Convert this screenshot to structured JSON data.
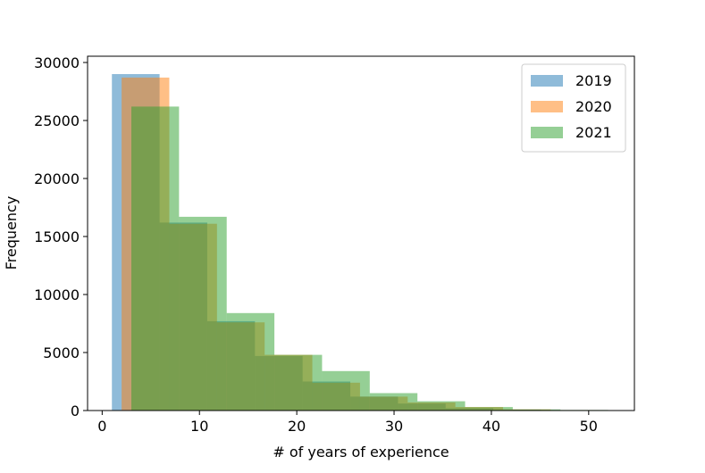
{
  "chart_data": {
    "type": "histogram",
    "x_label": "# of years of experience",
    "y_label": "Frequency",
    "series": [
      {
        "name": "2019",
        "color": "#1f77b4",
        "bins": [
          1,
          5.9,
          10.8,
          15.7,
          20.6,
          25.5,
          30.4,
          35.3,
          40.2,
          45.1,
          50
        ],
        "values": [
          29000,
          16200,
          7700,
          4700,
          2500,
          1200,
          600,
          200,
          80,
          30
        ]
      },
      {
        "name": "2020",
        "color": "#ff7f0e",
        "bins": [
          2,
          6.9,
          11.8,
          16.7,
          21.6,
          26.5,
          31.4,
          36.3,
          41.2,
          46.1,
          51
        ],
        "values": [
          28700,
          16100,
          7600,
          4800,
          2400,
          1200,
          700,
          300,
          100,
          40
        ]
      },
      {
        "name": "2021",
        "color": "#2ca02c",
        "bins": [
          3,
          7.9,
          12.8,
          17.7,
          22.6,
          27.5,
          32.4,
          37.3,
          42.2,
          47.1,
          52
        ],
        "values": [
          26200,
          16700,
          8400,
          4800,
          3400,
          1500,
          800,
          300,
          100,
          50
        ]
      }
    ],
    "opacity": 0.5,
    "xlim": [
      -1.5,
      54.7
    ],
    "xticks": [
      0,
      10,
      20,
      30,
      40,
      50
    ],
    "ylim": [
      0,
      30540
    ],
    "yticks": [
      0,
      5000,
      10000,
      15000,
      20000,
      25000,
      30000
    ],
    "legend": "upper right"
  }
}
